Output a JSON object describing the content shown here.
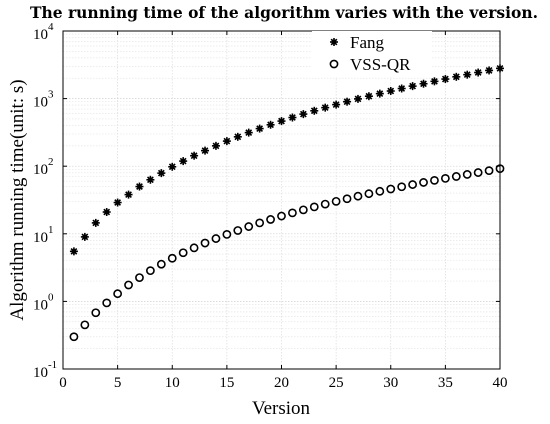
{
  "chart_data": {
    "type": "scatter",
    "title": "The running time of the algorithm varies with the version.",
    "xlabel": "Version",
    "ylabel": "Algorithm running time(unit: s)",
    "xlim": [
      0,
      40
    ],
    "ylim": [
      0.1,
      10000
    ],
    "yscale": "log",
    "grid": true,
    "legend_position": "top-right",
    "x_ticks": [
      "0",
      "5",
      "10",
      "15",
      "20",
      "25",
      "30",
      "35",
      "40"
    ],
    "y_ticks": [
      {
        "base": "10",
        "exp": "-1"
      },
      {
        "base": "10",
        "exp": "0"
      },
      {
        "base": "10",
        "exp": "1"
      },
      {
        "base": "10",
        "exp": "2"
      },
      {
        "base": "10",
        "exp": "3"
      },
      {
        "base": "10",
        "exp": "4"
      }
    ],
    "x": [
      1,
      2,
      3,
      4,
      5,
      6,
      7,
      8,
      9,
      10,
      11,
      12,
      13,
      14,
      15,
      16,
      17,
      18,
      19,
      20,
      21,
      22,
      23,
      24,
      25,
      26,
      27,
      28,
      29,
      30,
      31,
      32,
      33,
      34,
      35,
      36,
      37,
      38,
      39,
      40
    ],
    "series": [
      {
        "name": "Fang",
        "marker": "filled-asterisk",
        "color": "#000000",
        "values": [
          5.5,
          9,
          14.5,
          21,
          29,
          38,
          50,
          63,
          79,
          98,
          119,
          143,
          170,
          200,
          235,
          272,
          314,
          360,
          410,
          465,
          525,
          590,
          660,
          735,
          815,
          900,
          990,
          1085,
          1185,
          1295,
          1410,
          1530,
          1660,
          1800,
          1945,
          2100,
          2260,
          2430,
          2610,
          2800
        ]
      },
      {
        "name": "VSS-QR",
        "marker": "open-circle",
        "color": "#000000",
        "values": [
          0.3,
          0.45,
          0.68,
          0.95,
          1.3,
          1.75,
          2.25,
          2.85,
          3.55,
          4.35,
          5.25,
          6.2,
          7.3,
          8.5,
          9.8,
          11.2,
          12.8,
          14.5,
          16.3,
          18.3,
          20.4,
          22.6,
          25,
          27.5,
          30.2,
          33,
          36,
          39.2,
          42.5,
          46,
          49.6,
          53.5,
          57.5,
          61.7,
          66,
          70.5,
          75.5,
          80.5,
          86,
          92
        ]
      }
    ]
  }
}
